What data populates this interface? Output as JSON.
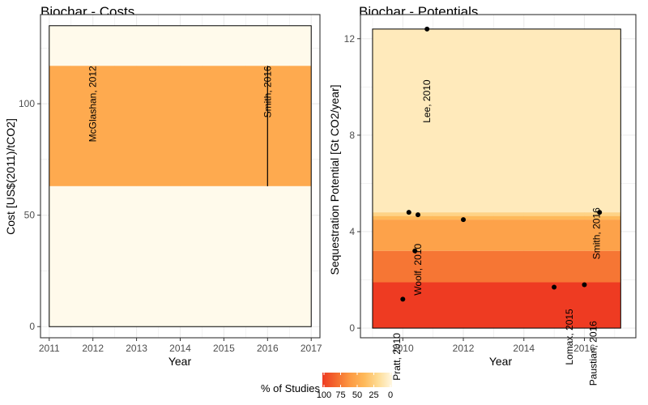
{
  "chart_data": [
    {
      "type": "scatter",
      "title": "Biochar - Costs",
      "xlabel": "Year",
      "ylabel": "Cost [US$(2011)/tCO2]",
      "xlim": [
        2010.8,
        2017.2
      ],
      "ylim": [
        -5,
        140
      ],
      "x_ticks": [
        2011,
        2012,
        2013,
        2014,
        2015,
        2016,
        2017
      ],
      "y_ticks": [
        0,
        50,
        100
      ],
      "plot_extent": {
        "x": [
          2011,
          2017
        ],
        "y": [
          0,
          135
        ]
      },
      "bands": [
        {
          "y0": 117,
          "y1": 135,
          "percent": 0
        },
        {
          "y0": 63,
          "y1": 117,
          "percent": 50
        },
        {
          "y0": 0,
          "y1": 63,
          "percent": 0
        }
      ],
      "ranges": [
        {
          "x": 2016,
          "y0": 63,
          "y1": 117
        }
      ],
      "points": [],
      "annotations": [
        {
          "text": "McGlashan, 2012",
          "x": 2012,
          "y": 117
        },
        {
          "text": "Smith, 2016",
          "x": 2016,
          "y": 117
        }
      ],
      "grid": true
    },
    {
      "type": "scatter",
      "title": "Biochar - Potentials",
      "xlabel": "Year",
      "ylabel": "Sequestration Potential [Gt CO2/year]",
      "xlim": [
        2008.6,
        2017.7
      ],
      "ylim": [
        -0.4,
        13.0
      ],
      "x_ticks": [
        2010,
        2012,
        2014,
        2016
      ],
      "y_ticks": [
        0,
        4,
        8,
        12
      ],
      "plot_extent": {
        "x": [
          2009,
          2017.2
        ],
        "y": [
          0,
          12.4
        ]
      },
      "bands": [
        {
          "y0": 4.8,
          "y1": 12.4,
          "percent": 10
        },
        {
          "y0": 4.65,
          "y1": 4.8,
          "percent": 25
        },
        {
          "y0": 4.5,
          "y1": 4.65,
          "percent": 40
        },
        {
          "y0": 3.2,
          "y1": 4.5,
          "percent": 55
        },
        {
          "y0": 1.9,
          "y1": 3.2,
          "percent": 75
        },
        {
          "y0": 0,
          "y1": 1.9,
          "percent": 100
        }
      ],
      "points": [
        {
          "x": 2010.0,
          "y": 1.2
        },
        {
          "x": 2010.2,
          "y": 4.8
        },
        {
          "x": 2010.4,
          "y": 3.2
        },
        {
          "x": 2010.5,
          "y": 4.7
        },
        {
          "x": 2010.8,
          "y": 12.4
        },
        {
          "x": 2012.0,
          "y": 4.5
        },
        {
          "x": 2015.0,
          "y": 1.7
        },
        {
          "x": 2016.0,
          "y": 1.8
        },
        {
          "x": 2016.5,
          "y": 4.8
        }
      ],
      "annotations": [
        {
          "text": "Pratt, 2010",
          "x": 2009.8,
          "y": -0.2
        },
        {
          "text": "Woolf, 2010",
          "x": 2010.5,
          "y": 3.5
        },
        {
          "text": "Lee, 2010",
          "x": 2010.8,
          "y": 10.3
        },
        {
          "text": "Lomax, 2015",
          "x": 2015.5,
          "y": 0.8
        },
        {
          "text": "Paustian, 2016",
          "x": 2016.3,
          "y": 0.3
        },
        {
          "text": "Smith, 2016",
          "x": 2016.4,
          "y": 5.0
        }
      ],
      "grid": true
    }
  ],
  "legend": {
    "title": "% of Studies",
    "labels": [
      "100",
      "75",
      "50",
      "25",
      "0"
    ],
    "gradient_colors": [
      "#ee3b22",
      "#f46a2e",
      "#fd9a44",
      "#feb95a",
      "#fedc95",
      "#fff7e0"
    ]
  },
  "colors": {
    "panel_background": "#ffffff",
    "grid": "#ebebeb",
    "panel_border": "#333333",
    "zero_band": "#fffaeb",
    "points": "#000000"
  }
}
